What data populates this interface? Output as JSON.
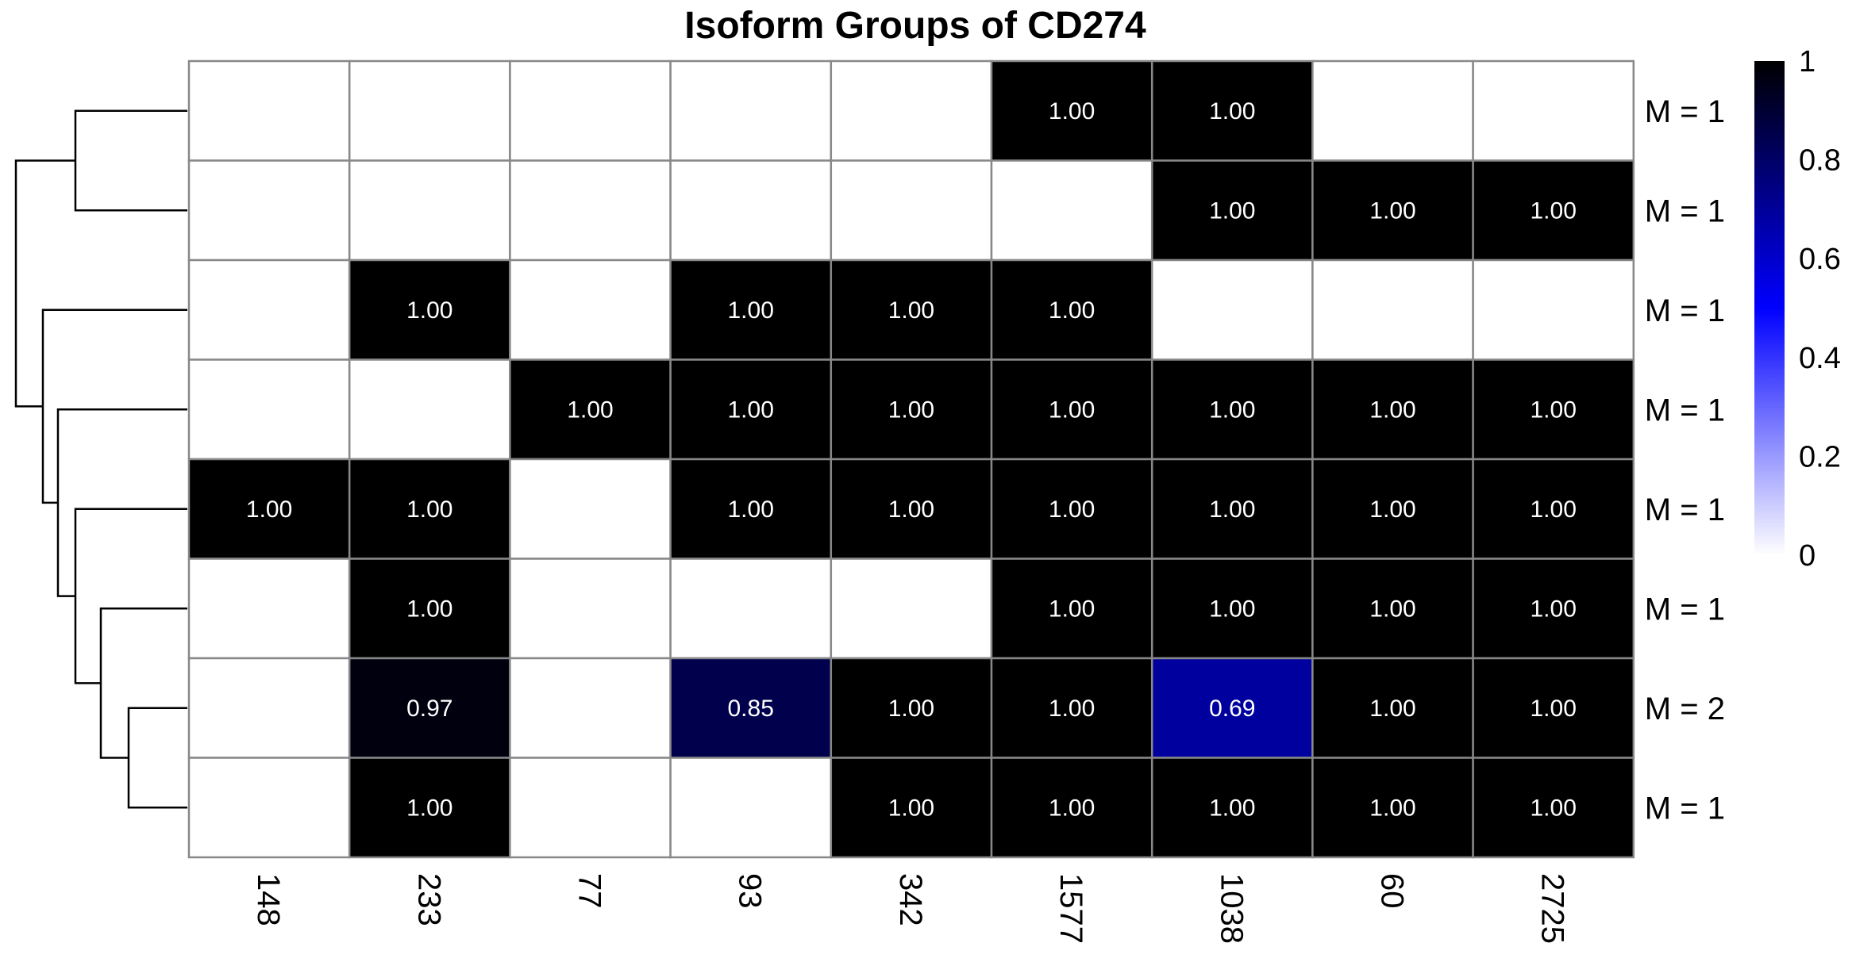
{
  "chart_data": {
    "type": "heatmap",
    "title": "Isoform Groups of CD274",
    "columns": [
      "148",
      "233",
      "77",
      "93",
      "342",
      "1577",
      "1038",
      "60",
      "2725"
    ],
    "row_labels": [
      "M = 1",
      "M = 1",
      "M = 1",
      "M = 1",
      "M = 1",
      "M = 1",
      "M = 2",
      "M = 1"
    ],
    "values": [
      [
        0,
        0,
        0,
        0,
        0,
        1,
        1,
        0,
        0
      ],
      [
        0,
        0,
        0,
        0,
        0,
        0,
        1,
        1,
        1
      ],
      [
        0,
        1,
        0,
        1,
        1,
        1,
        0,
        0,
        0
      ],
      [
        0,
        0,
        1,
        1,
        1,
        1,
        1,
        1,
        1
      ],
      [
        1,
        1,
        0,
        1,
        1,
        1,
        1,
        1,
        1
      ],
      [
        0,
        1,
        0,
        0,
        0,
        1,
        1,
        1,
        1
      ],
      [
        0,
        0.97,
        0,
        0.85,
        1,
        1,
        0.69,
        1,
        1
      ],
      [
        0,
        1,
        0,
        0,
        1,
        1,
        1,
        1,
        1
      ]
    ],
    "cell_labels": [
      [
        "",
        "",
        "",
        "",
        "",
        "1.00",
        "1.00",
        "",
        ""
      ],
      [
        "",
        "",
        "",
        "",
        "",
        "",
        "1.00",
        "1.00",
        "1.00"
      ],
      [
        "",
        "1.00",
        "",
        "1.00",
        "1.00",
        "1.00",
        "",
        "",
        ""
      ],
      [
        "",
        "",
        "1.00",
        "1.00",
        "1.00",
        "1.00",
        "1.00",
        "1.00",
        "1.00"
      ],
      [
        "1.00",
        "1.00",
        "",
        "1.00",
        "1.00",
        "1.00",
        "1.00",
        "1.00",
        "1.00"
      ],
      [
        "",
        "1.00",
        "",
        "",
        "",
        "1.00",
        "1.00",
        "1.00",
        "1.00"
      ],
      [
        "",
        "0.97",
        "",
        "0.85",
        "1.00",
        "1.00",
        "0.69",
        "1.00",
        "1.00"
      ],
      [
        "",
        "1.00",
        "",
        "",
        "1.00",
        "1.00",
        "1.00",
        "1.00",
        "1.00"
      ]
    ],
    "color_scale": {
      "range": [
        0,
        1
      ],
      "stops": [
        {
          "value": 0,
          "color": "#ffffff"
        },
        {
          "value": 0.5,
          "color": "#0000ff"
        },
        {
          "value": 1,
          "color": "#000000"
        }
      ],
      "legend_ticks": [
        "1",
        "0.8",
        "0.6",
        "0.4",
        "0.2",
        "0"
      ],
      "legend_position": "right"
    },
    "dendrogram": {
      "side": "left",
      "merges": [
        [
          0,
          1
        ],
        [
          6,
          7
        ],
        [
          5,
          "6+7"
        ],
        [
          4,
          "5+6+7"
        ],
        [
          3,
          "4+5+6+7"
        ],
        [
          2,
          "3+4+5+6+7"
        ],
        [
          "0+1",
          "2+3+4+5+6+7"
        ]
      ]
    }
  }
}
